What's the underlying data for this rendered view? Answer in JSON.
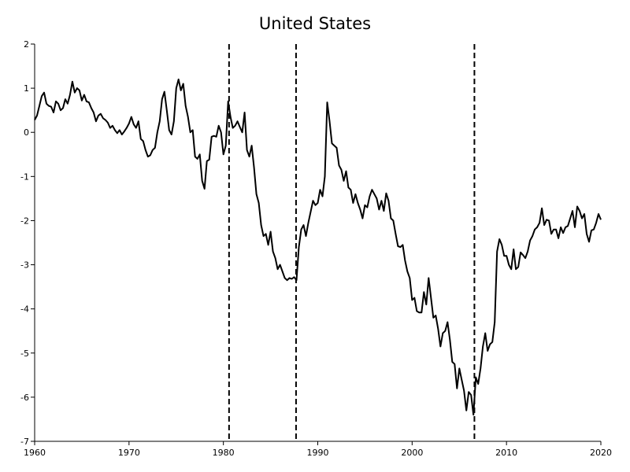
{
  "chart_data": {
    "type": "line",
    "title": "United States",
    "xlabel": "",
    "ylabel": "",
    "xlim": [
      1960,
      2020
    ],
    "ylim": [
      -7,
      2
    ],
    "x_ticks": [
      1960,
      1970,
      1980,
      1990,
      2000,
      2010,
      2020
    ],
    "y_ticks": [
      2,
      1,
      0,
      -1,
      -2,
      -3,
      -4,
      -5,
      -6,
      -7
    ],
    "grid": false,
    "legend": "none",
    "vertical_lines": [
      {
        "x": 1980.6,
        "style": "dashed"
      },
      {
        "x": 1987.7,
        "style": "dashed"
      },
      {
        "x": 2006.6,
        "style": "dashed"
      }
    ],
    "series": [
      {
        "color": "#000000",
        "points": [
          [
            1960.0,
            0.28
          ],
          [
            1960.25,
            0.38
          ],
          [
            1960.5,
            0.6
          ],
          [
            1960.75,
            0.82
          ],
          [
            1961.0,
            0.9
          ],
          [
            1961.25,
            0.65
          ],
          [
            1961.5,
            0.6
          ],
          [
            1961.75,
            0.58
          ],
          [
            1962.0,
            0.45
          ],
          [
            1962.25,
            0.7
          ],
          [
            1962.5,
            0.65
          ],
          [
            1962.75,
            0.5
          ],
          [
            1963.0,
            0.55
          ],
          [
            1963.25,
            0.75
          ],
          [
            1963.5,
            0.65
          ],
          [
            1963.75,
            0.85
          ],
          [
            1964.0,
            1.15
          ],
          [
            1964.25,
            0.9
          ],
          [
            1964.5,
            1.0
          ],
          [
            1964.75,
            0.95
          ],
          [
            1965.0,
            0.72
          ],
          [
            1965.25,
            0.85
          ],
          [
            1965.5,
            0.7
          ],
          [
            1965.75,
            0.68
          ],
          [
            1966.0,
            0.55
          ],
          [
            1966.25,
            0.45
          ],
          [
            1966.5,
            0.25
          ],
          [
            1966.75,
            0.38
          ],
          [
            1967.0,
            0.42
          ],
          [
            1967.25,
            0.32
          ],
          [
            1967.5,
            0.28
          ],
          [
            1967.75,
            0.22
          ],
          [
            1968.0,
            0.1
          ],
          [
            1968.25,
            0.15
          ],
          [
            1968.5,
            0.05
          ],
          [
            1968.75,
            -0.02
          ],
          [
            1969.0,
            0.05
          ],
          [
            1969.25,
            -0.05
          ],
          [
            1969.5,
            0.02
          ],
          [
            1969.75,
            0.1
          ],
          [
            1970.0,
            0.2
          ],
          [
            1970.25,
            0.35
          ],
          [
            1970.5,
            0.18
          ],
          [
            1970.75,
            0.1
          ],
          [
            1971.0,
            0.25
          ],
          [
            1971.25,
            -0.15
          ],
          [
            1971.5,
            -0.2
          ],
          [
            1971.75,
            -0.4
          ],
          [
            1972.0,
            -0.55
          ],
          [
            1972.25,
            -0.52
          ],
          [
            1972.5,
            -0.4
          ],
          [
            1972.75,
            -0.35
          ],
          [
            1973.0,
            0.0
          ],
          [
            1973.25,
            0.25
          ],
          [
            1973.5,
            0.75
          ],
          [
            1973.75,
            0.92
          ],
          [
            1974.0,
            0.5
          ],
          [
            1974.25,
            0.05
          ],
          [
            1974.5,
            -0.05
          ],
          [
            1974.75,
            0.25
          ],
          [
            1975.0,
            1.0
          ],
          [
            1975.25,
            1.2
          ],
          [
            1975.5,
            0.95
          ],
          [
            1975.75,
            1.1
          ],
          [
            1976.0,
            0.6
          ],
          [
            1976.25,
            0.35
          ],
          [
            1976.5,
            0.0
          ],
          [
            1976.75,
            0.05
          ],
          [
            1977.0,
            -0.55
          ],
          [
            1977.25,
            -0.6
          ],
          [
            1977.5,
            -0.5
          ],
          [
            1977.75,
            -1.1
          ],
          [
            1978.0,
            -1.28
          ],
          [
            1978.25,
            -0.65
          ],
          [
            1978.5,
            -0.62
          ],
          [
            1978.75,
            -0.1
          ],
          [
            1979.0,
            -0.08
          ],
          [
            1979.25,
            -0.1
          ],
          [
            1979.5,
            0.15
          ],
          [
            1979.75,
            0.0
          ],
          [
            1980.0,
            -0.5
          ],
          [
            1980.25,
            -0.3
          ],
          [
            1980.5,
            0.7
          ],
          [
            1980.75,
            0.35
          ],
          [
            1981.0,
            0.1
          ],
          [
            1981.25,
            0.15
          ],
          [
            1981.5,
            0.25
          ],
          [
            1981.75,
            0.12
          ],
          [
            1982.0,
            0.0
          ],
          [
            1982.25,
            0.45
          ],
          [
            1982.5,
            -0.4
          ],
          [
            1982.75,
            -0.55
          ],
          [
            1983.0,
            -0.3
          ],
          [
            1983.25,
            -0.8
          ],
          [
            1983.5,
            -1.4
          ],
          [
            1983.75,
            -1.6
          ],
          [
            1984.0,
            -2.1
          ],
          [
            1984.25,
            -2.35
          ],
          [
            1984.5,
            -2.3
          ],
          [
            1984.75,
            -2.55
          ],
          [
            1985.0,
            -2.25
          ],
          [
            1985.25,
            -2.7
          ],
          [
            1985.5,
            -2.85
          ],
          [
            1985.75,
            -3.1
          ],
          [
            1986.0,
            -3.0
          ],
          [
            1986.25,
            -3.15
          ],
          [
            1986.5,
            -3.3
          ],
          [
            1986.75,
            -3.35
          ],
          [
            1987.0,
            -3.3
          ],
          [
            1987.25,
            -3.32
          ],
          [
            1987.5,
            -3.28
          ],
          [
            1987.75,
            -3.35
          ],
          [
            1988.0,
            -2.6
          ],
          [
            1988.25,
            -2.2
          ],
          [
            1988.5,
            -2.1
          ],
          [
            1988.75,
            -2.35
          ],
          [
            1989.0,
            -2.05
          ],
          [
            1989.25,
            -1.8
          ],
          [
            1989.5,
            -1.55
          ],
          [
            1989.75,
            -1.65
          ],
          [
            1990.0,
            -1.6
          ],
          [
            1990.25,
            -1.3
          ],
          [
            1990.5,
            -1.45
          ],
          [
            1990.75,
            -1.0
          ],
          [
            1991.0,
            0.68
          ],
          [
            1991.25,
            0.25
          ],
          [
            1991.5,
            -0.25
          ],
          [
            1991.75,
            -0.3
          ],
          [
            1992.0,
            -0.35
          ],
          [
            1992.25,
            -0.75
          ],
          [
            1992.5,
            -0.85
          ],
          [
            1992.75,
            -1.1
          ],
          [
            1993.0,
            -0.88
          ],
          [
            1993.25,
            -1.25
          ],
          [
            1993.5,
            -1.3
          ],
          [
            1993.75,
            -1.6
          ],
          [
            1994.0,
            -1.4
          ],
          [
            1994.25,
            -1.6
          ],
          [
            1994.5,
            -1.75
          ],
          [
            1994.75,
            -1.95
          ],
          [
            1995.0,
            -1.65
          ],
          [
            1995.25,
            -1.7
          ],
          [
            1995.5,
            -1.45
          ],
          [
            1995.75,
            -1.3
          ],
          [
            1996.0,
            -1.4
          ],
          [
            1996.25,
            -1.5
          ],
          [
            1996.5,
            -1.75
          ],
          [
            1996.75,
            -1.55
          ],
          [
            1997.0,
            -1.78
          ],
          [
            1997.25,
            -1.38
          ],
          [
            1997.5,
            -1.55
          ],
          [
            1997.75,
            -1.95
          ],
          [
            1998.0,
            -2.0
          ],
          [
            1998.25,
            -2.3
          ],
          [
            1998.5,
            -2.58
          ],
          [
            1998.75,
            -2.6
          ],
          [
            1999.0,
            -2.55
          ],
          [
            1999.25,
            -2.9
          ],
          [
            1999.5,
            -3.15
          ],
          [
            1999.75,
            -3.3
          ],
          [
            2000.0,
            -3.8
          ],
          [
            2000.25,
            -3.75
          ],
          [
            2000.5,
            -4.05
          ],
          [
            2000.75,
            -4.08
          ],
          [
            2001.0,
            -4.08
          ],
          [
            2001.25,
            -3.62
          ],
          [
            2001.5,
            -3.9
          ],
          [
            2001.75,
            -3.3
          ],
          [
            2002.0,
            -3.75
          ],
          [
            2002.25,
            -4.2
          ],
          [
            2002.5,
            -4.15
          ],
          [
            2002.75,
            -4.45
          ],
          [
            2003.0,
            -4.85
          ],
          [
            2003.25,
            -4.55
          ],
          [
            2003.5,
            -4.5
          ],
          [
            2003.75,
            -4.3
          ],
          [
            2004.0,
            -4.7
          ],
          [
            2004.25,
            -5.2
          ],
          [
            2004.5,
            -5.25
          ],
          [
            2004.75,
            -5.8
          ],
          [
            2005.0,
            -5.35
          ],
          [
            2005.25,
            -5.6
          ],
          [
            2005.5,
            -5.85
          ],
          [
            2005.75,
            -6.3
          ],
          [
            2006.0,
            -5.88
          ],
          [
            2006.25,
            -5.95
          ],
          [
            2006.5,
            -6.4
          ],
          [
            2006.75,
            -5.55
          ],
          [
            2007.0,
            -5.7
          ],
          [
            2007.25,
            -5.35
          ],
          [
            2007.5,
            -4.85
          ],
          [
            2007.75,
            -4.55
          ],
          [
            2008.0,
            -4.95
          ],
          [
            2008.25,
            -4.8
          ],
          [
            2008.5,
            -4.75
          ],
          [
            2008.75,
            -4.3
          ],
          [
            2009.0,
            -2.7
          ],
          [
            2009.25,
            -2.42
          ],
          [
            2009.5,
            -2.55
          ],
          [
            2009.75,
            -2.8
          ],
          [
            2010.0,
            -2.8
          ],
          [
            2010.25,
            -3.0
          ],
          [
            2010.5,
            -3.1
          ],
          [
            2010.75,
            -2.65
          ],
          [
            2011.0,
            -3.1
          ],
          [
            2011.25,
            -3.05
          ],
          [
            2011.5,
            -2.72
          ],
          [
            2011.75,
            -2.78
          ],
          [
            2012.0,
            -2.85
          ],
          [
            2012.25,
            -2.7
          ],
          [
            2012.5,
            -2.45
          ],
          [
            2012.75,
            -2.35
          ],
          [
            2013.0,
            -2.2
          ],
          [
            2013.25,
            -2.15
          ],
          [
            2013.5,
            -2.05
          ],
          [
            2013.75,
            -1.72
          ],
          [
            2014.0,
            -2.1
          ],
          [
            2014.25,
            -1.98
          ],
          [
            2014.5,
            -2.0
          ],
          [
            2014.75,
            -2.3
          ],
          [
            2015.0,
            -2.2
          ],
          [
            2015.25,
            -2.2
          ],
          [
            2015.5,
            -2.4
          ],
          [
            2015.75,
            -2.15
          ],
          [
            2016.0,
            -2.28
          ],
          [
            2016.25,
            -2.15
          ],
          [
            2016.5,
            -2.12
          ],
          [
            2016.75,
            -1.95
          ],
          [
            2017.0,
            -1.78
          ],
          [
            2017.25,
            -2.15
          ],
          [
            2017.5,
            -1.68
          ],
          [
            2017.75,
            -1.78
          ],
          [
            2018.0,
            -1.95
          ],
          [
            2018.25,
            -1.85
          ],
          [
            2018.5,
            -2.3
          ],
          [
            2018.75,
            -2.48
          ],
          [
            2019.0,
            -2.22
          ],
          [
            2019.25,
            -2.2
          ],
          [
            2019.5,
            -2.05
          ],
          [
            2019.75,
            -1.85
          ],
          [
            2020.0,
            -1.98
          ]
        ]
      }
    ]
  }
}
